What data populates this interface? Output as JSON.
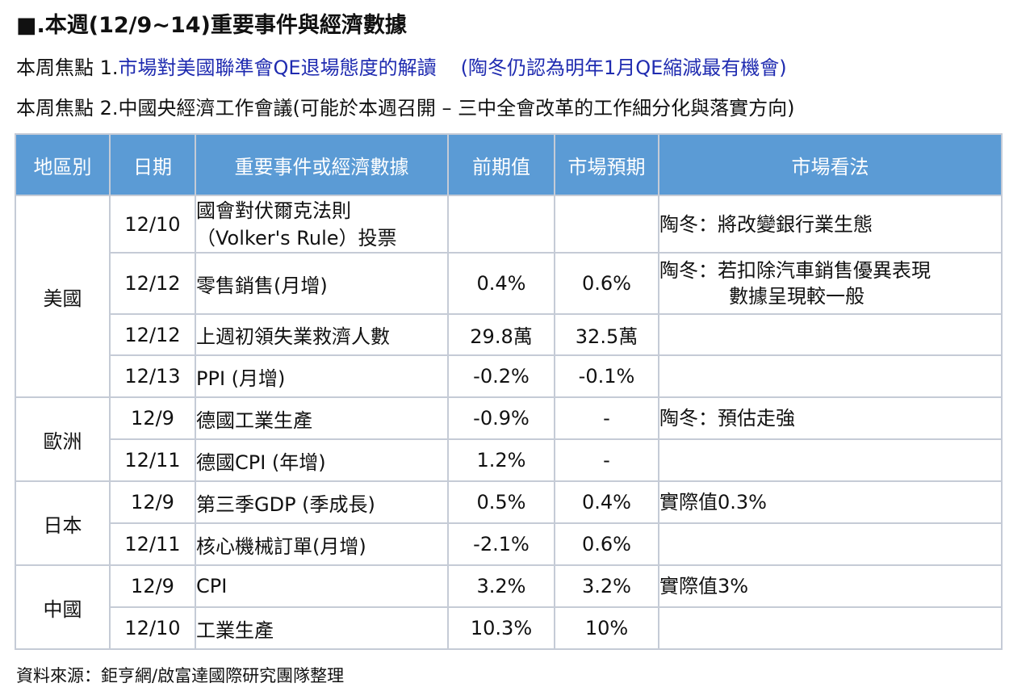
{
  "header": {
    "title": "■.本週(12/9~14)重要事件與經濟數據",
    "focus1_prefix": "本周焦點 1.",
    "focus1_main": "市場對美國聯準會QE退場態度的解讀",
    "focus1_note": "(陶冬仍認為明年1月QE縮減最有機會)",
    "focus2": "本周焦點 2.中國央經濟工作會議(可能於本週召開 – 三中全會改革的工作細分化與落實方向)"
  },
  "table": {
    "columns": [
      "地區別",
      "日期",
      "重要事件或經濟數據",
      "前期值",
      "市場預期",
      "市場看法"
    ],
    "regions": {
      "us": "美國",
      "eu": "歐洲",
      "jp": "日本",
      "cn": "中國"
    },
    "rows": [
      {
        "date": "12/10",
        "event_line1": "國會對伏爾克法則",
        "event_line2": "（Volker's Rule）投票",
        "previous": "",
        "expected": "",
        "view_line1": "陶冬：將改變銀行業生態",
        "view_line2": ""
      },
      {
        "date": "12/12",
        "event": "零售銷售(月增)",
        "previous": "0.4%",
        "expected": "0.6%",
        "view_line1": "陶冬：若扣除汽車銷售優異表現",
        "view_line2": "數據呈現較一般"
      },
      {
        "date": "12/12",
        "event": "上週初領失業救濟人數",
        "previous": "29.8萬",
        "expected": "32.5萬",
        "view_line1": "",
        "view_line2": ""
      },
      {
        "date": "12/13",
        "event": "PPI (月增)",
        "previous": "-0.2%",
        "expected": "-0.1%",
        "view_line1": "",
        "view_line2": ""
      },
      {
        "date": "12/9",
        "event": "德國工業生產",
        "previous": "-0.9%",
        "expected": "-",
        "view_line1": "陶冬：預估走強",
        "view_line2": ""
      },
      {
        "date": "12/11",
        "event": "德國CPI (年增)",
        "previous": "1.2%",
        "expected": "-",
        "view_line1": "",
        "view_line2": ""
      },
      {
        "date": "12/9",
        "event": "第三季GDP (季成長)",
        "previous": "0.5%",
        "expected": "0.4%",
        "view_line1": "實際值0.3%",
        "view_line2": ""
      },
      {
        "date": "12/11",
        "event": "核心機械訂單(月增)",
        "previous": "-2.1%",
        "expected": "0.6%",
        "view_line1": "",
        "view_line2": ""
      },
      {
        "date": "12/9",
        "event": "CPI",
        "previous": "3.2%",
        "expected": "3.2%",
        "view_line1": "實際值3%",
        "view_line2": ""
      },
      {
        "date": "12/10",
        "event": "工業生產",
        "previous": "10.3%",
        "expected": "10%",
        "view_line1": "",
        "view_line2": ""
      }
    ]
  },
  "footer": {
    "source": "資料來源：鉅亨網/啟富達國際研究團隊整理"
  },
  "colors": {
    "header_bg": "#5b9bd5",
    "header_text": "#ffffff",
    "focus_blue": "#1f2bb0",
    "grid": "#c5cbd6"
  }
}
